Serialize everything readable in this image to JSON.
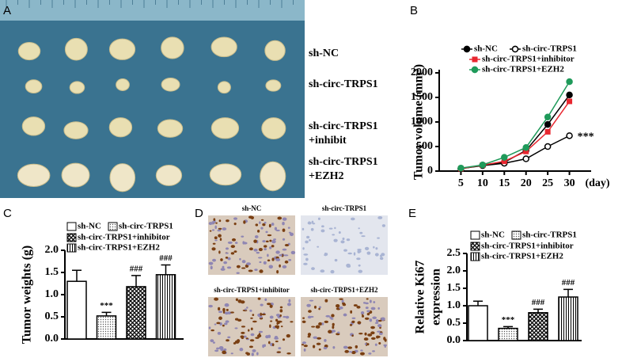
{
  "panels": {
    "A": {
      "letter": "A",
      "rows": [
        [
          "sh-NC"
        ],
        [
          "sh-circ-TRPS1"
        ],
        [
          "sh-circ-TRPS1",
          "+inhibit"
        ],
        [
          "sh-circ-TRPS1",
          "+EZH2"
        ]
      ]
    },
    "D": {
      "letter": "D",
      "labels": [
        "sh-NC",
        "sh-circ-TRPS1",
        "sh-circ-TRPS1+inhibitor",
        "sh-circ-TRPS1+EZH2"
      ]
    }
  },
  "chart_data": [
    {
      "type": "line",
      "letter": "B",
      "ylabel": "Tumor volume (mm³)",
      "xlabel": "(day)",
      "x": [
        5,
        10,
        15,
        20,
        25,
        30
      ],
      "xlim": [
        0,
        35
      ],
      "xticks": [
        5,
        10,
        15,
        20,
        25,
        30
      ],
      "ylim": [
        0,
        2000
      ],
      "yticks": [
        0,
        500,
        1000,
        1500,
        2000
      ],
      "series": [
        {
          "name": "sh-NC",
          "color": "#000000",
          "marker": "circle",
          "values": [
            50,
            120,
            180,
            420,
            950,
            1550
          ]
        },
        {
          "name": "sh-circ-TRPS1",
          "color": "#000000",
          "marker": "open-circle",
          "values": [
            50,
            110,
            160,
            250,
            500,
            720
          ],
          "annotation": "***"
        },
        {
          "name": "sh-circ-TRPS1+inhibitor",
          "color": "#e8262f",
          "marker": "square",
          "values": [
            50,
            120,
            200,
            400,
            800,
            1420
          ]
        },
        {
          "name": "sh-circ-TRPS1+EZH2",
          "color": "#1f9a5a",
          "marker": "circle",
          "values": [
            60,
            125,
            280,
            480,
            1100,
            1820
          ]
        }
      ]
    },
    {
      "type": "bar",
      "letter": "C",
      "ylabel": [
        "Tumor weights (g)"
      ],
      "ylim": [
        0,
        2
      ],
      "yticks": [
        {
          "value": 0,
          "label": "0.0"
        },
        0.5,
        {
          "value": 1,
          "label": "1.0"
        },
        1.5,
        {
          "value": 2,
          "label": "2.0"
        }
      ],
      "series": [
        {
          "name": "sh-NC",
          "pattern": "none",
          "values": [
            1.3
          ],
          "errors": [
            0.25
          ]
        },
        {
          "name": "sh-circ-TRPS1",
          "pattern": "dots",
          "values": [
            0.52
          ],
          "errors": [
            0.08
          ],
          "annotation": "***"
        },
        {
          "name": "sh-circ-TRPS1+inhibitor",
          "pattern": "cross",
          "values": [
            1.18
          ],
          "errors": [
            0.25
          ],
          "annotation": "###"
        },
        {
          "name": "sh-circ-TRPS1+EZH2",
          "pattern": "vlines",
          "values": [
            1.45
          ],
          "errors": [
            0.22
          ],
          "annotation": "###"
        }
      ]
    },
    {
      "type": "bar",
      "letter": "E",
      "ylabel": [
        "Relative Ki67",
        "expression"
      ],
      "ylim": [
        0,
        2.5
      ],
      "yticks": [
        {
          "value": 0,
          "label": "0.0"
        },
        0.5,
        {
          "value": 1,
          "label": "1.0"
        },
        1.5,
        {
          "value": 2,
          "label": "2.0"
        },
        2.5
      ],
      "series": [
        {
          "name": "sh-NC",
          "pattern": "none",
          "values": [
            1.0
          ],
          "errors": [
            0.13
          ]
        },
        {
          "name": "sh-circ-TRPS1",
          "pattern": "dots",
          "values": [
            0.35
          ],
          "errors": [
            0.05
          ],
          "annotation": "***"
        },
        {
          "name": "sh-circ-TRPS1+inhibitor",
          "pattern": "cross",
          "values": [
            0.8
          ],
          "errors": [
            0.1
          ],
          "annotation": "###"
        },
        {
          "name": "sh-circ-TRPS1+EZH2",
          "pattern": "vlines",
          "values": [
            1.25
          ],
          "errors": [
            0.22
          ],
          "annotation": "###"
        }
      ]
    }
  ]
}
